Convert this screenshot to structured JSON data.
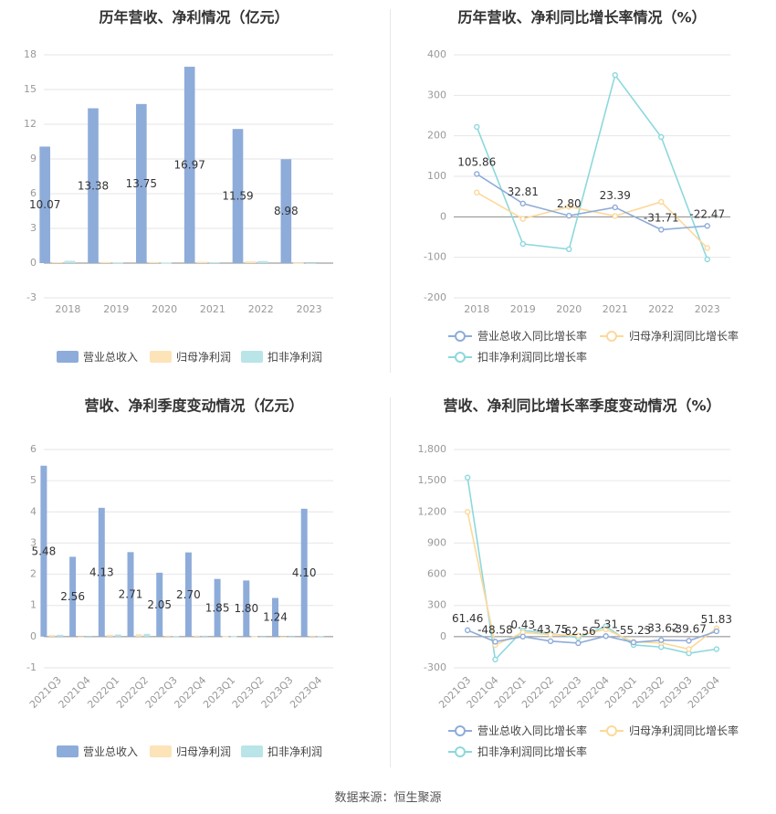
{
  "source_text": "数据来源：恒生聚源",
  "colors": {
    "revenue": "#8eacd9",
    "net_profit": "#fde3b8",
    "deducted_profit": "#b9e4e8",
    "revenue_line": "#8eacd9",
    "net_profit_line": "#fdd89a",
    "deducted_line": "#8dd8dc",
    "grid": "#e6e6e6",
    "axis_text": "#999999",
    "title": "#333333"
  },
  "chart_data": [
    {
      "id": "annual-bar",
      "type": "bar",
      "title": "历年营收、净利情况（亿元）",
      "categories": [
        "2018",
        "2019",
        "2020",
        "2021",
        "2022",
        "2023"
      ],
      "ylim": [
        -3,
        18
      ],
      "yticks": [
        -3,
        0,
        3,
        6,
        9,
        12,
        15,
        18
      ],
      "series": [
        {
          "name": "营业总收入",
          "values": [
            10.07,
            13.38,
            13.75,
            16.97,
            11.59,
            8.98
          ],
          "labels": [
            "10.07",
            "13.38",
            "13.75",
            "16.97",
            "11.59",
            "8.98"
          ]
        },
        {
          "name": "归母净利润",
          "values": [
            0.08,
            0.1,
            0.1,
            0.12,
            0.15,
            0.02
          ]
        },
        {
          "name": "扣非净利润",
          "values": [
            0.2,
            0.06,
            0.05,
            0.07,
            0.18,
            -0.02
          ]
        }
      ]
    },
    {
      "id": "annual-line",
      "type": "line",
      "title": "历年营收、净利同比增长率情况（%）",
      "categories": [
        "2018",
        "2019",
        "2020",
        "2021",
        "2022",
        "2023"
      ],
      "ylim": [
        -200,
        400
      ],
      "yticks": [
        -200,
        -100,
        0,
        100,
        200,
        300,
        400
      ],
      "series": [
        {
          "name": "营业总收入同比增长率",
          "values": [
            105.86,
            32.81,
            2.8,
            23.39,
            -31.71,
            -22.47
          ],
          "labels": [
            "105.86",
            "32.81",
            "2.80",
            "23.39",
            "-31.71",
            "-22.47"
          ]
        },
        {
          "name": "归母净利润同比增长率",
          "values": [
            60,
            -5,
            25,
            2,
            37,
            -77
          ]
        },
        {
          "name": "扣非净利润同比增长率",
          "values": [
            222,
            -67,
            -80,
            350,
            197,
            -105
          ]
        }
      ]
    },
    {
      "id": "quarterly-bar",
      "type": "bar",
      "title": "营收、净利季度变动情况（亿元）",
      "categories": [
        "2021Q3",
        "2021Q4",
        "2022Q1",
        "2022Q2",
        "2022Q3",
        "2022Q4",
        "2023Q1",
        "2023Q2",
        "2023Q3",
        "2023Q4"
      ],
      "ylim": [
        -1,
        6
      ],
      "yticks": [
        -1,
        0,
        1,
        2,
        3,
        4,
        5,
        6
      ],
      "series": [
        {
          "name": "营业总收入",
          "values": [
            5.48,
            2.56,
            4.13,
            2.71,
            2.05,
            2.7,
            1.85,
            1.8,
            1.24,
            4.1
          ],
          "labels": [
            "5.48",
            "2.56",
            "4.13",
            "2.71",
            "2.05",
            "2.70",
            "1.85",
            "1.80",
            "1.24",
            "4.10"
          ]
        },
        {
          "name": "归母净利润",
          "values": [
            0.05,
            -0.02,
            0.06,
            0.08,
            0.03,
            0.03,
            0.01,
            0.01,
            -0.01,
            0.03
          ]
        },
        {
          "name": "扣非净利润",
          "values": [
            0.06,
            -0.04,
            0.07,
            0.09,
            0.02,
            0.03,
            0.01,
            0.0,
            -0.02,
            0.02
          ]
        }
      ]
    },
    {
      "id": "quarterly-line",
      "type": "line",
      "title": "营收、净利同比增长率季度变动情况（%）",
      "categories": [
        "2021Q3",
        "2021Q4",
        "2022Q1",
        "2022Q2",
        "2022Q3",
        "2022Q4",
        "2023Q1",
        "2023Q2",
        "2023Q3",
        "2023Q4"
      ],
      "ylim": [
        -300,
        1800
      ],
      "yticks": [
        -300,
        0,
        300,
        600,
        900,
        1200,
        1500,
        1800
      ],
      "ytick_labels": [
        "-300",
        "0",
        "300",
        "600",
        "900",
        "1,200",
        "1,500",
        "1,800"
      ],
      "series": [
        {
          "name": "营业总收入同比增长率",
          "values": [
            61.46,
            -48.58,
            0.43,
            -43.75,
            -62.56,
            5.31,
            -55.23,
            -33.62,
            -39.67,
            51.83
          ],
          "labels": [
            "61.46",
            "-48.58",
            "0.43",
            "-43.75",
            "-62.56",
            "5.31",
            "-55.23",
            "-33.62",
            "-39.67",
            "51.83"
          ]
        },
        {
          "name": "归母净利润同比增长率",
          "values": [
            1200,
            -80,
            40,
            20,
            10,
            70,
            -50,
            -60,
            -120,
            80
          ]
        },
        {
          "name": "扣非净利润同比增长率",
          "values": [
            1530,
            -220,
            60,
            30,
            -10,
            100,
            -80,
            -100,
            -160,
            -120
          ]
        }
      ]
    }
  ]
}
